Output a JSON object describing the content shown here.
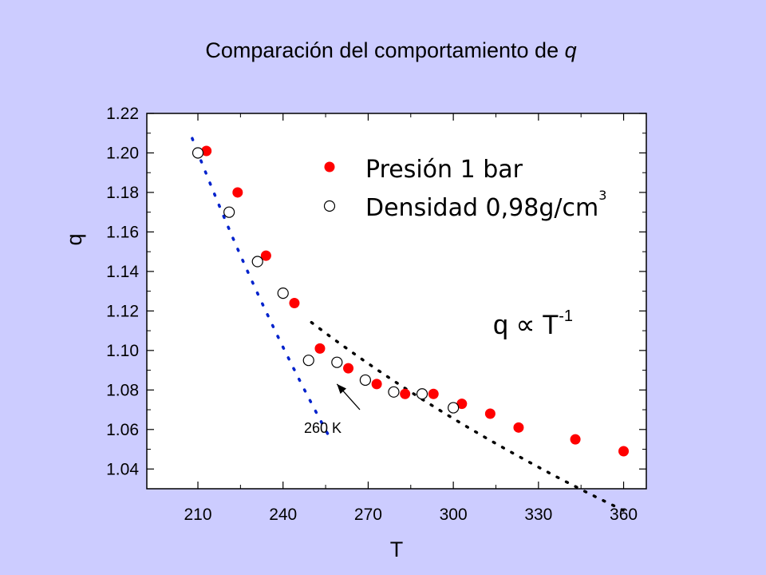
{
  "slide": {
    "title_main": "Comparación del comportamiento de ",
    "title_var": "q"
  },
  "chart_data": {
    "type": "scatter",
    "xlabel": "T",
    "ylabel": "q",
    "xlim": [
      192,
      368
    ],
    "ylim": [
      1.03,
      1.22
    ],
    "xticks": [
      210,
      240,
      270,
      300,
      330,
      360
    ],
    "xtick_labels": [
      "210",
      "240",
      "270",
      "300",
      "330",
      "360"
    ],
    "yticks": [
      1.04,
      1.06,
      1.08,
      1.1,
      1.12,
      1.14,
      1.16,
      1.18,
      1.2,
      1.22
    ],
    "ytick_labels": [
      "1.04",
      "1.06",
      "1.08",
      "1.10",
      "1.12",
      "1.14",
      "1.16",
      "1.18",
      "1.20",
      "1.22"
    ],
    "grid": false,
    "legend_position": "top-right",
    "colors": {
      "presion": "#ff0000",
      "densidad": "#ffffff",
      "fit_low": "#0022cc",
      "fit_high": "#000000",
      "background": "#ccccff",
      "plot_bg": "#ffffff"
    },
    "series": [
      {
        "name": "Presión 1 bar",
        "marker": "filled-circle",
        "x": [
          213,
          224,
          234,
          244,
          253,
          263,
          273,
          283,
          293,
          303,
          313,
          323,
          343,
          360
        ],
        "y": [
          1.201,
          1.18,
          1.148,
          1.124,
          1.101,
          1.091,
          1.083,
          1.078,
          1.078,
          1.073,
          1.068,
          1.061,
          1.055,
          1.049
        ]
      },
      {
        "name": "Densidad 0,98g/cm",
        "name_superscript": "3",
        "marker": "open-circle",
        "x": [
          210,
          221,
          231,
          240,
          249,
          259,
          269,
          279,
          289,
          300
        ],
        "y": [
          1.2,
          1.17,
          1.145,
          1.129,
          1.095,
          1.094,
          1.085,
          1.079,
          1.078,
          1.071
        ]
      }
    ],
    "fits": [
      {
        "style": "dotted",
        "color": "#0022cc",
        "xrange": [
          208,
          256
        ],
        "segments": 80
      },
      {
        "style": "dotted",
        "color": "#000000",
        "xrange": [
          250,
          360
        ],
        "segments": 80
      }
    ],
    "annotation": {
      "text": "260 K",
      "arrow_to": [
        259,
        1.083
      ]
    },
    "formula": {
      "base": "q ",
      "symbol": "∝",
      "var": " T",
      "exponent": "-1"
    }
  }
}
